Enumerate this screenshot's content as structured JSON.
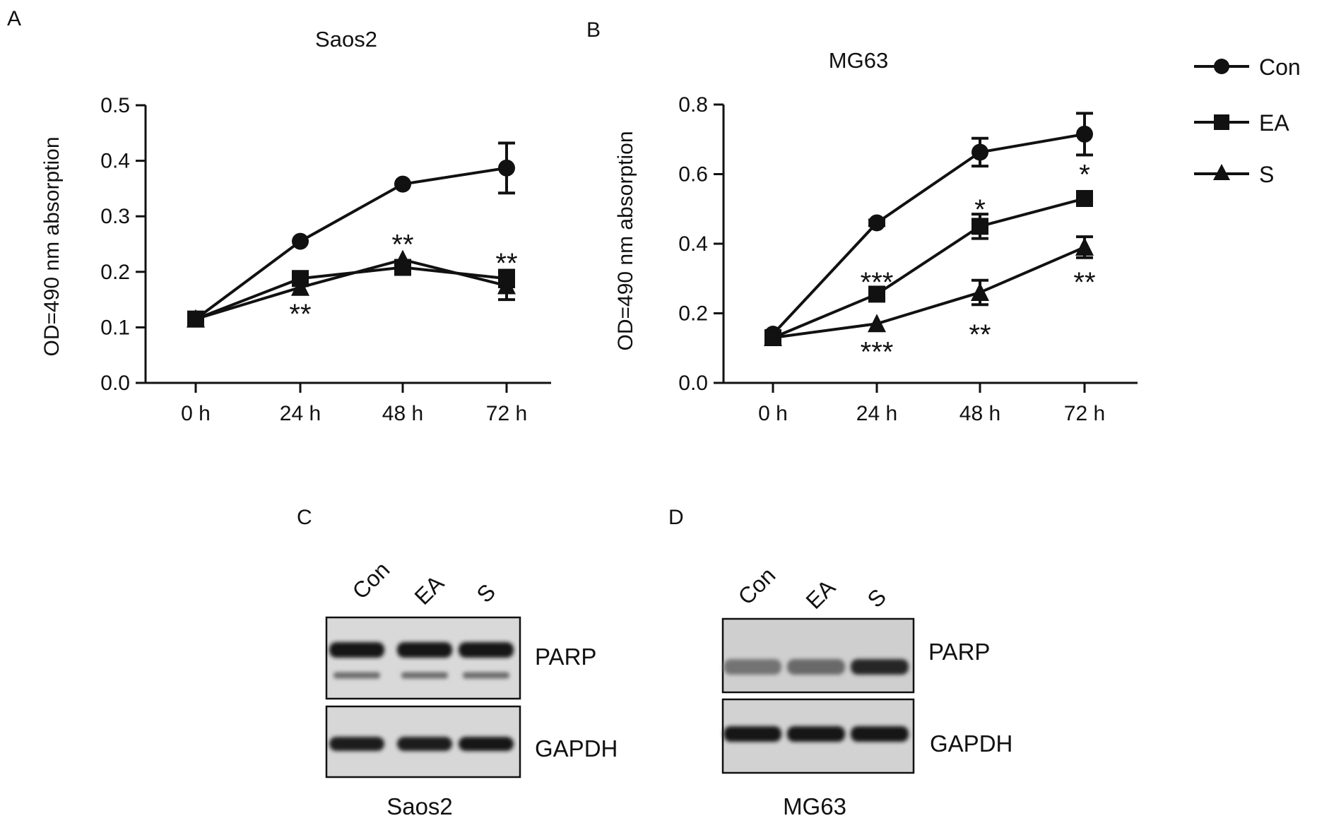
{
  "panels": [
    "A",
    "B",
    "C",
    "D"
  ],
  "chart_data": [
    {
      "type": "line",
      "title": "Saos2",
      "xlabel": "",
      "ylabel": "OD=490 nm absorption",
      "categories": [
        "0 h",
        "24 h",
        "48 h",
        "72 h"
      ],
      "ylim": [
        0,
        0.5
      ],
      "yticks": [
        "0.0",
        "0.1",
        "0.2",
        "0.3",
        "0.4",
        "0.5"
      ],
      "series": [
        {
          "name": "Con",
          "marker": "circle",
          "values": [
            0.115,
            0.255,
            0.358,
            0.387
          ],
          "errors": [
            0.005,
            0.005,
            0.005,
            0.045
          ]
        },
        {
          "name": "EA",
          "marker": "square",
          "values": [
            0.115,
            0.188,
            0.208,
            0.188
          ],
          "errors": [
            0.005,
            0.008,
            0.008,
            0.015
          ]
        },
        {
          "name": "S",
          "marker": "triangle",
          "values": [
            0.115,
            0.172,
            0.222,
            0.175
          ],
          "errors": [
            0.005,
            0.005,
            0.005,
            0.025
          ]
        }
      ],
      "annotations": [
        {
          "x": "24 h",
          "y": 0.125,
          "text": "**"
        },
        {
          "x": "48 h",
          "y": 0.25,
          "text": "**"
        },
        {
          "x": "72 h",
          "y": 0.216,
          "text": "**"
        }
      ]
    },
    {
      "type": "line",
      "title": "MG63",
      "xlabel": "",
      "ylabel": "OD=490 nm absorption",
      "categories": [
        "0 h",
        "24 h",
        "48 h",
        "72 h"
      ],
      "ylim": [
        0,
        0.8
      ],
      "yticks": [
        "0.0",
        "0.2",
        "0.4",
        "0.6",
        "0.8"
      ],
      "series": [
        {
          "name": "Con",
          "marker": "circle",
          "values": [
            0.14,
            0.46,
            0.663,
            0.715
          ],
          "errors": [
            0.005,
            0.008,
            0.04,
            0.06
          ]
        },
        {
          "name": "EA",
          "marker": "square",
          "values": [
            0.13,
            0.255,
            0.45,
            0.53
          ],
          "errors": [
            0.005,
            0.008,
            0.035,
            0.01
          ]
        },
        {
          "name": "S",
          "marker": "triangle",
          "values": [
            0.13,
            0.17,
            0.26,
            0.39
          ],
          "errors": [
            0.005,
            0.005,
            0.035,
            0.03
          ]
        }
      ],
      "annotations": [
        {
          "x": "24 h",
          "y": 0.29,
          "text": "***"
        },
        {
          "x": "24 h",
          "y": 0.09,
          "text": "***"
        },
        {
          "x": "48 h",
          "y": 0.5,
          "text": "*"
        },
        {
          "x": "48 h",
          "y": 0.14,
          "text": "**"
        },
        {
          "x": "72 h",
          "y": 0.6,
          "text": "*"
        },
        {
          "x": "72 h",
          "y": 0.29,
          "text": "**"
        }
      ]
    }
  ],
  "legend": {
    "placement": "top-right",
    "items": [
      {
        "name": "Con",
        "marker": "circle"
      },
      {
        "name": "EA",
        "marker": "square"
      },
      {
        "name": "S",
        "marker": "triangle"
      }
    ]
  },
  "blots": [
    {
      "cell_line": "Saos2",
      "lanes": [
        "Con",
        "EA",
        "S"
      ],
      "rows": [
        {
          "label": "PARP",
          "band_intensity": [
            0.95,
            0.95,
            0.95
          ]
        },
        {
          "label": "GAPDH",
          "band_intensity": [
            0.9,
            0.9,
            0.95
          ]
        }
      ]
    },
    {
      "cell_line": "MG63",
      "lanes": [
        "Con",
        "EA",
        "S"
      ],
      "rows": [
        {
          "label": "PARP",
          "band_intensity": [
            0.45,
            0.5,
            0.85
          ]
        },
        {
          "label": "GAPDH",
          "band_intensity": [
            0.95,
            0.95,
            0.95
          ]
        }
      ]
    }
  ]
}
